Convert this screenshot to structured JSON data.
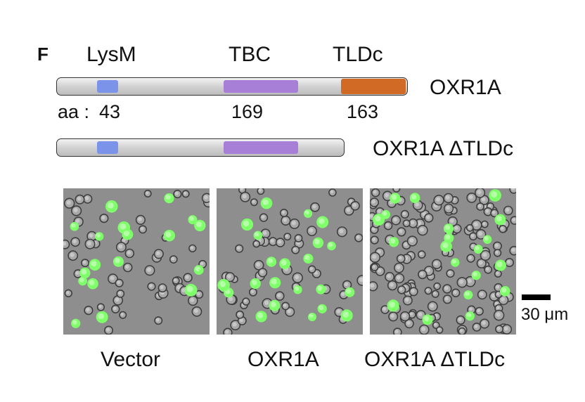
{
  "panel_letter": "F",
  "domain_labels": {
    "lysm": "LysM",
    "tbc": "TBC",
    "tldc": "TLDc"
  },
  "constructs": [
    {
      "name": "OXR1A"
    },
    {
      "name": "OXR1A ΔTLDc"
    }
  ],
  "aa_lengths": {
    "prefix": "aa :",
    "lysm": "43",
    "tbc": "169",
    "tldc": "163"
  },
  "domain_colors": {
    "lysm": "#7b93e8",
    "tbc": "#a77fd6",
    "tldc": "#d06a25"
  },
  "micrographs": [
    {
      "caption": "Vector"
    },
    {
      "caption": "OXR1A"
    },
    {
      "caption": "OXR1A ΔTLDc"
    }
  ],
  "scale_bar": {
    "label": "30 μm"
  }
}
